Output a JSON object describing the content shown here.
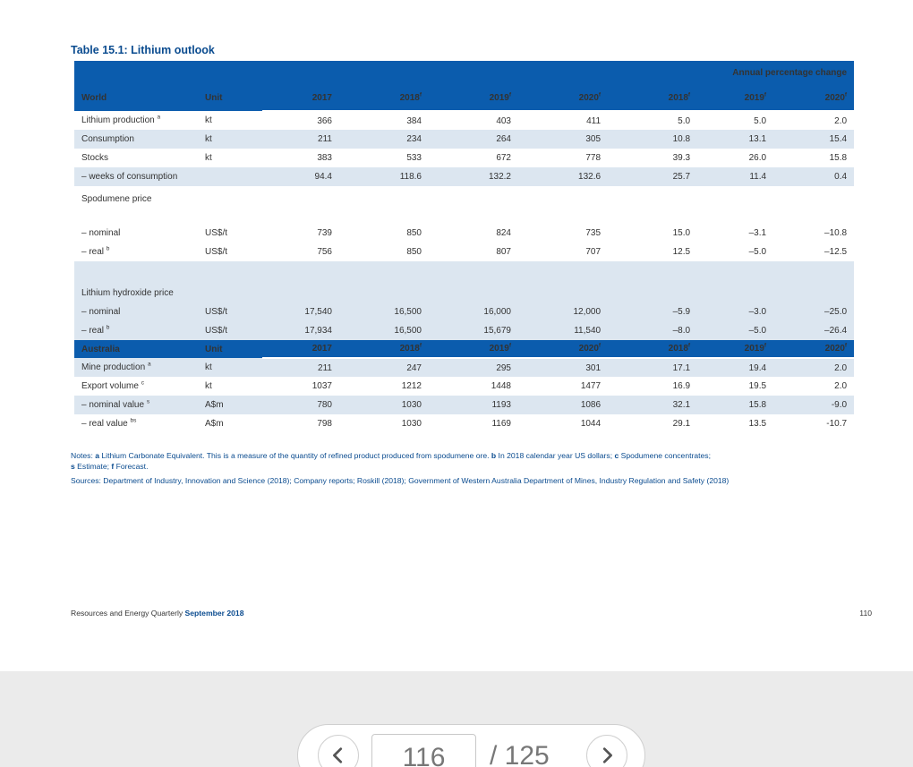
{
  "document": {
    "table_title": "Table 15.1: Lithium outlook",
    "annual_change_header": "Annual percentage change",
    "world_header": {
      "label": "World",
      "unit": "Unit",
      "years": [
        "2017",
        "2018",
        "2019",
        "2020"
      ],
      "year_flags": [
        "",
        "f",
        "f",
        "f"
      ],
      "change_years": [
        "2018",
        "2019",
        "2020"
      ],
      "change_flags": [
        "f",
        "f",
        "f"
      ]
    },
    "world_rows": [
      {
        "label": "Lithium production",
        "sup": "a",
        "unit": "kt",
        "values": [
          "366",
          "384",
          "403",
          "411",
          "5.0",
          "5.0",
          "2.0"
        ]
      },
      {
        "label": "Consumption",
        "sup": "",
        "unit": "kt",
        "values": [
          "211",
          "234",
          "264",
          "305",
          "10.8",
          "13.1",
          "15.4"
        ]
      },
      {
        "label": "Stocks",
        "sup": "",
        "unit": "kt",
        "values": [
          "383",
          "533",
          "672",
          "778",
          "39.3",
          "26.0",
          "15.8"
        ]
      },
      {
        "label": "– weeks of consumption",
        "sup": "",
        "unit": "",
        "values": [
          "94.4",
          "118.6",
          "132.2",
          "132.6",
          "25.7",
          "11.4",
          "0.4"
        ]
      }
    ],
    "spodumene": {
      "title": "Spodumene price",
      "rows": [
        {
          "label": "– nominal",
          "sup": "",
          "unit": "US$/t",
          "values": [
            "739",
            "850",
            "824",
            "735",
            "15.0",
            "–3.1",
            "–10.8"
          ]
        },
        {
          "label": "– real",
          "sup": "b",
          "unit": "US$/t",
          "values": [
            "756",
            "850",
            "807",
            "707",
            "12.5",
            "–5.0",
            "–12.5"
          ]
        }
      ]
    },
    "hydroxide": {
      "title": "Lithium hydroxide price",
      "rows": [
        {
          "label": "– nominal",
          "sup": "",
          "unit": "US$/t",
          "values": [
            "17,540",
            "16,500",
            "16,000",
            "12,000",
            "–5.9",
            "–3.0",
            "–25.0"
          ]
        },
        {
          "label": "– real",
          "sup": "b",
          "unit": "US$/t",
          "values": [
            "17,934",
            "16,500",
            "15,679",
            "11,540",
            "–8.0",
            "–5.0",
            "–26.4"
          ]
        }
      ]
    },
    "australia_header": {
      "label": "Australia",
      "unit": "Unit",
      "years": [
        "2017",
        "2018",
        "2019",
        "2020"
      ],
      "year_flags": [
        "",
        "f",
        "f",
        "f"
      ],
      "change_years": [
        "2018",
        "2019",
        "2020"
      ],
      "change_flags": [
        "f",
        "f",
        "f"
      ]
    },
    "australia_rows": [
      {
        "label": "Mine production",
        "sup": "a",
        "unit": "kt",
        "values": [
          "211",
          "247",
          "295",
          "301",
          "17.1",
          "19.4",
          "2.0"
        ]
      },
      {
        "label": "Export volume",
        "sup": "c",
        "unit": "kt",
        "values": [
          "1037",
          "1212",
          "1448",
          "1477",
          "16.9",
          "19.5",
          "2.0"
        ]
      },
      {
        "label": "– nominal value",
        "sup": "s",
        "unit": "A$m",
        "values": [
          "780",
          "1030",
          "1193",
          "1086",
          "32.1",
          "15.8",
          "-9.0"
        ]
      },
      {
        "label": "– real value",
        "sup": "bs",
        "unit": "A$m",
        "values": [
          "798",
          "1030",
          "1169",
          "1044",
          "29.1",
          "13.5",
          "-10.7"
        ]
      }
    ],
    "notes": {
      "prefix": "Notes:",
      "a_key": "a",
      "a_text": " Lithium Carbonate Equivalent. This is a measure of the quantity of refined product produced from spodumene ore. ",
      "b_key": "b",
      "b_text": " In 2018 calendar year US dollars; ",
      "c_key": "c",
      "c_text": " Spodumene concentrates;",
      "s_key": "s",
      "s_text": " Estimate; ",
      "f_key": "f",
      "f_text": " Forecast."
    },
    "sources": "Sources: Department of Industry, Innovation and Science (2018); Company reports; Roskill (2018); Government of Western Australia Department of Mines, Industry Regulation and Safety (2018)",
    "footer": {
      "publication": "Resources and Energy Quarterly ",
      "issue": "September 2018",
      "page_number": "110"
    }
  },
  "viewer": {
    "current_page": "116",
    "total_pages": "/ 125"
  }
}
